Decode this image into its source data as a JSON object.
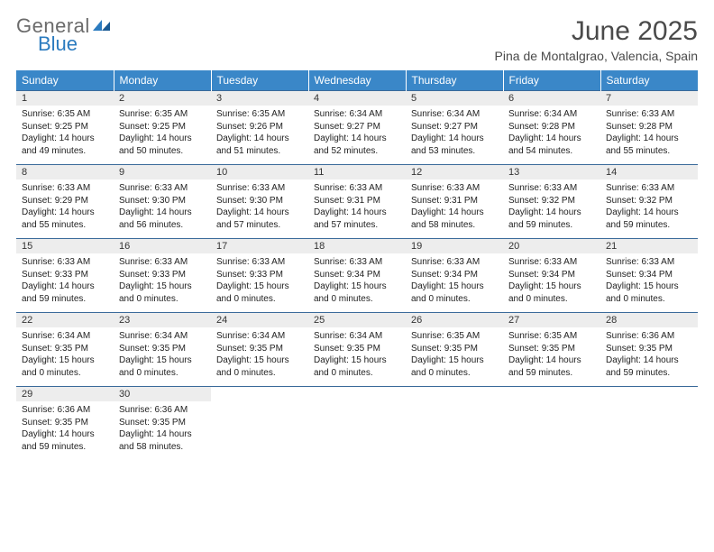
{
  "logo": {
    "line1": "General",
    "line2": "Blue"
  },
  "title": "June 2025",
  "location": "Pina de Montalgrao, Valencia, Spain",
  "colors": {
    "header_bg": "#3a87c8",
    "header_text": "#ffffff",
    "daynum_bg": "#ededed",
    "rule": "#3a6a9a",
    "logo_gray": "#6b6b6b",
    "logo_blue": "#2b7bbf"
  },
  "weekdays": [
    "Sunday",
    "Monday",
    "Tuesday",
    "Wednesday",
    "Thursday",
    "Friday",
    "Saturday"
  ],
  "weeks": [
    [
      {
        "n": "1",
        "sr": "6:35 AM",
        "ss": "9:25 PM",
        "dl": "14 hours and 49 minutes."
      },
      {
        "n": "2",
        "sr": "6:35 AM",
        "ss": "9:25 PM",
        "dl": "14 hours and 50 minutes."
      },
      {
        "n": "3",
        "sr": "6:35 AM",
        "ss": "9:26 PM",
        "dl": "14 hours and 51 minutes."
      },
      {
        "n": "4",
        "sr": "6:34 AM",
        "ss": "9:27 PM",
        "dl": "14 hours and 52 minutes."
      },
      {
        "n": "5",
        "sr": "6:34 AM",
        "ss": "9:27 PM",
        "dl": "14 hours and 53 minutes."
      },
      {
        "n": "6",
        "sr": "6:34 AM",
        "ss": "9:28 PM",
        "dl": "14 hours and 54 minutes."
      },
      {
        "n": "7",
        "sr": "6:33 AM",
        "ss": "9:28 PM",
        "dl": "14 hours and 55 minutes."
      }
    ],
    [
      {
        "n": "8",
        "sr": "6:33 AM",
        "ss": "9:29 PM",
        "dl": "14 hours and 55 minutes."
      },
      {
        "n": "9",
        "sr": "6:33 AM",
        "ss": "9:30 PM",
        "dl": "14 hours and 56 minutes."
      },
      {
        "n": "10",
        "sr": "6:33 AM",
        "ss": "9:30 PM",
        "dl": "14 hours and 57 minutes."
      },
      {
        "n": "11",
        "sr": "6:33 AM",
        "ss": "9:31 PM",
        "dl": "14 hours and 57 minutes."
      },
      {
        "n": "12",
        "sr": "6:33 AM",
        "ss": "9:31 PM",
        "dl": "14 hours and 58 minutes."
      },
      {
        "n": "13",
        "sr": "6:33 AM",
        "ss": "9:32 PM",
        "dl": "14 hours and 59 minutes."
      },
      {
        "n": "14",
        "sr": "6:33 AM",
        "ss": "9:32 PM",
        "dl": "14 hours and 59 minutes."
      }
    ],
    [
      {
        "n": "15",
        "sr": "6:33 AM",
        "ss": "9:33 PM",
        "dl": "14 hours and 59 minutes."
      },
      {
        "n": "16",
        "sr": "6:33 AM",
        "ss": "9:33 PM",
        "dl": "15 hours and 0 minutes."
      },
      {
        "n": "17",
        "sr": "6:33 AM",
        "ss": "9:33 PM",
        "dl": "15 hours and 0 minutes."
      },
      {
        "n": "18",
        "sr": "6:33 AM",
        "ss": "9:34 PM",
        "dl": "15 hours and 0 minutes."
      },
      {
        "n": "19",
        "sr": "6:33 AM",
        "ss": "9:34 PM",
        "dl": "15 hours and 0 minutes."
      },
      {
        "n": "20",
        "sr": "6:33 AM",
        "ss": "9:34 PM",
        "dl": "15 hours and 0 minutes."
      },
      {
        "n": "21",
        "sr": "6:33 AM",
        "ss": "9:34 PM",
        "dl": "15 hours and 0 minutes."
      }
    ],
    [
      {
        "n": "22",
        "sr": "6:34 AM",
        "ss": "9:35 PM",
        "dl": "15 hours and 0 minutes."
      },
      {
        "n": "23",
        "sr": "6:34 AM",
        "ss": "9:35 PM",
        "dl": "15 hours and 0 minutes."
      },
      {
        "n": "24",
        "sr": "6:34 AM",
        "ss": "9:35 PM",
        "dl": "15 hours and 0 minutes."
      },
      {
        "n": "25",
        "sr": "6:34 AM",
        "ss": "9:35 PM",
        "dl": "15 hours and 0 minutes."
      },
      {
        "n": "26",
        "sr": "6:35 AM",
        "ss": "9:35 PM",
        "dl": "15 hours and 0 minutes."
      },
      {
        "n": "27",
        "sr": "6:35 AM",
        "ss": "9:35 PM",
        "dl": "14 hours and 59 minutes."
      },
      {
        "n": "28",
        "sr": "6:36 AM",
        "ss": "9:35 PM",
        "dl": "14 hours and 59 minutes."
      }
    ],
    [
      {
        "n": "29",
        "sr": "6:36 AM",
        "ss": "9:35 PM",
        "dl": "14 hours and 59 minutes."
      },
      {
        "n": "30",
        "sr": "6:36 AM",
        "ss": "9:35 PM",
        "dl": "14 hours and 58 minutes."
      },
      null,
      null,
      null,
      null,
      null
    ]
  ],
  "labels": {
    "sunrise": "Sunrise:",
    "sunset": "Sunset:",
    "daylight": "Daylight:"
  }
}
